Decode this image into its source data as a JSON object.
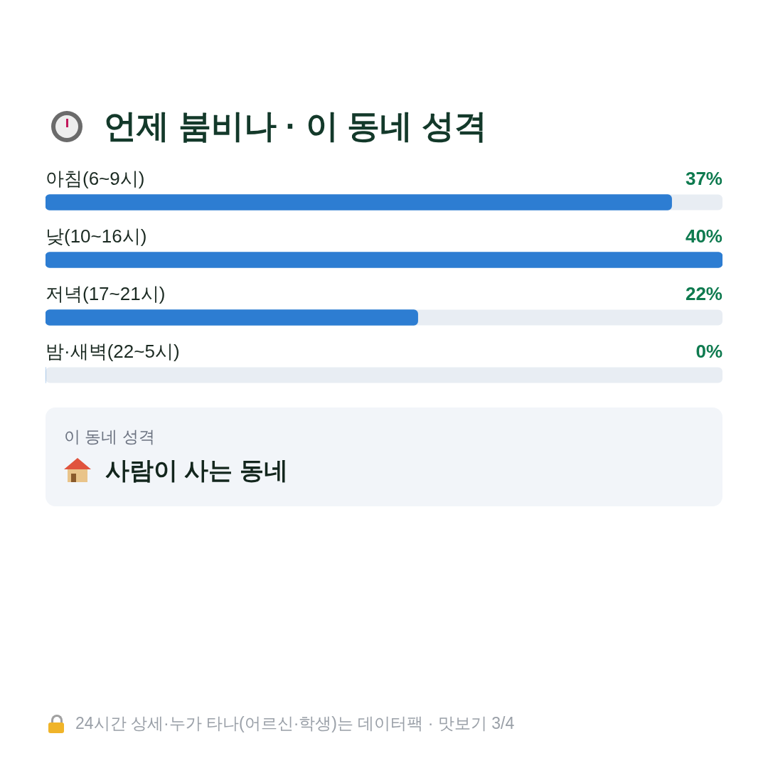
{
  "chart_data": {
    "type": "bar",
    "orientation": "horizontal",
    "title": "언제 붐비나 · 이 동네 성격",
    "categories": [
      "아침(6~9시)",
      "낮(10~16시)",
      "저녁(17~21시)",
      "밤·새벽(22~5시)"
    ],
    "values": [
      37,
      40,
      22,
      0
    ],
    "color": "#2d7dd2",
    "value_labels": [
      "37%",
      "40%",
      "22%",
      "0%"
    ],
    "annotations": [
      "이 동네 성격",
      "사람이 사는 동네",
      "24시간 상세·누가 타나(어르신·학생)는 데이터팩 · 맛보기 3/4"
    ]
  }
}
